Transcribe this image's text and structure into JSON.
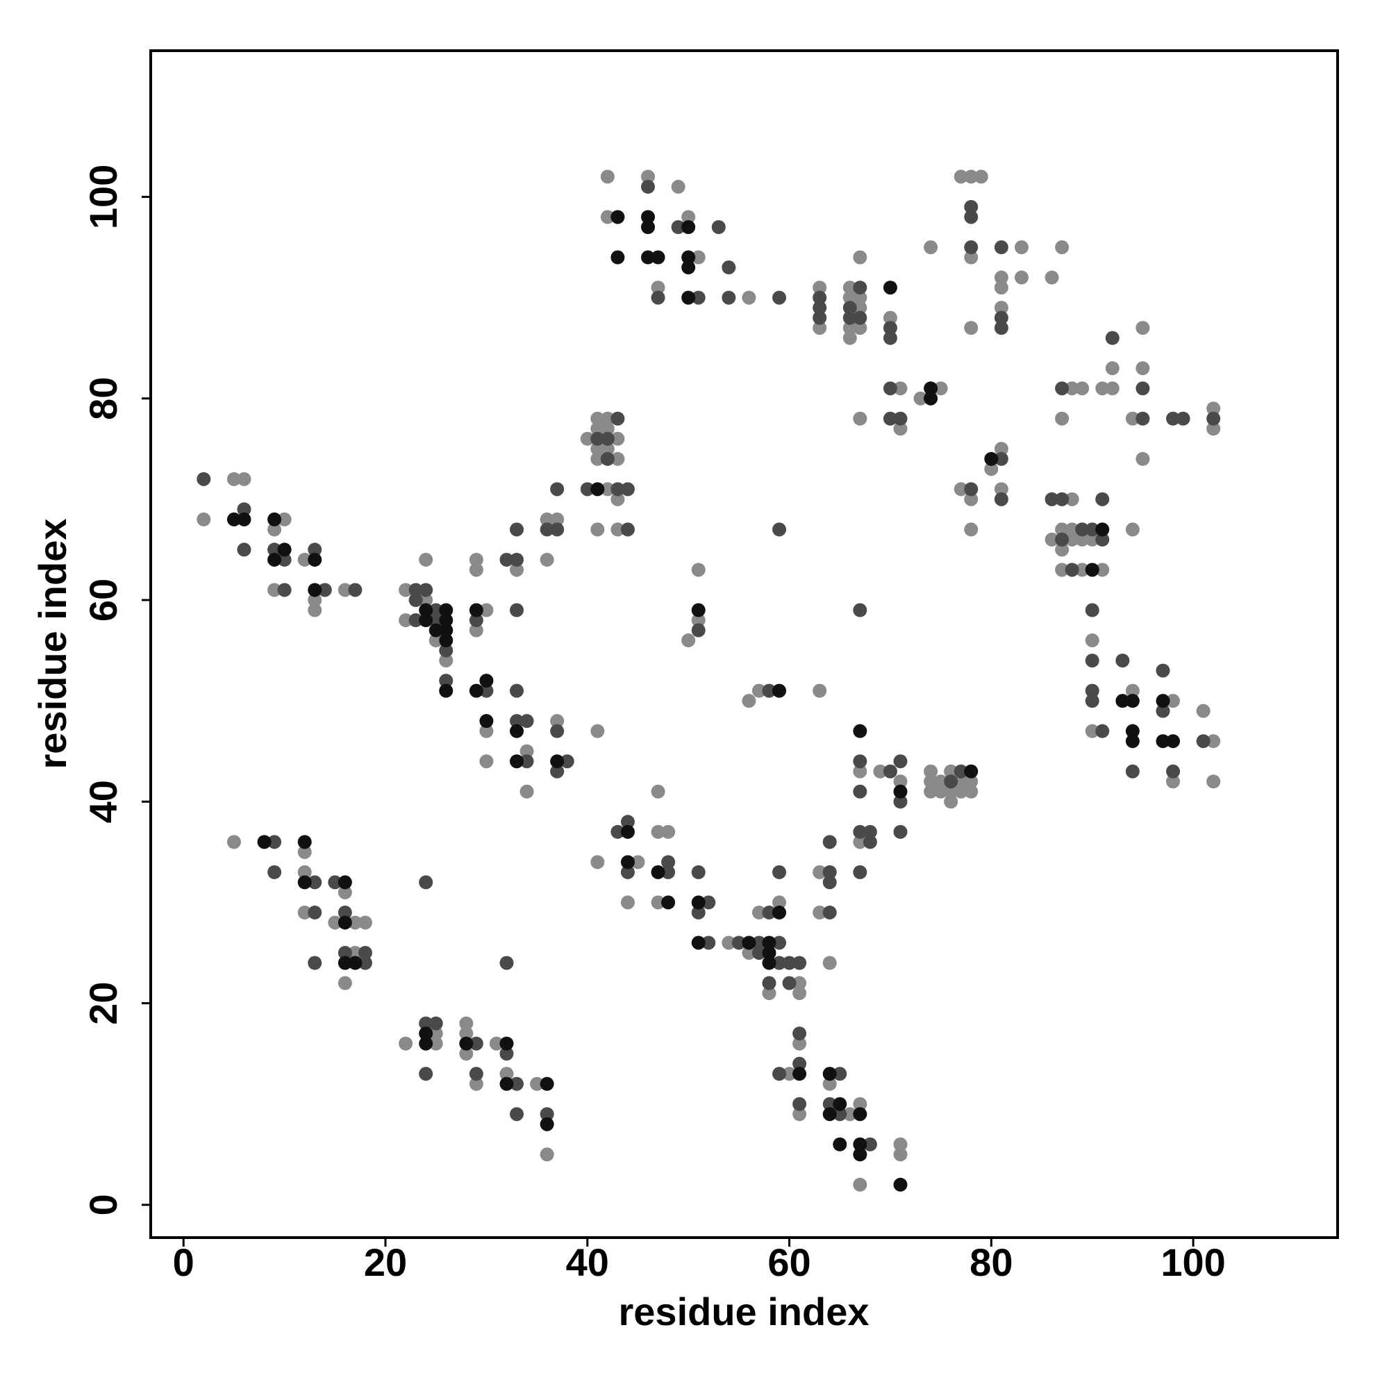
{
  "chart_data": {
    "type": "scatter",
    "xlabel": "residue index",
    "ylabel": "residue index",
    "xlim": [
      -3.25,
      114.3
    ],
    "ylim": [
      -3.25,
      114.5
    ],
    "xticks": [
      0,
      20,
      40,
      60,
      80,
      100
    ],
    "yticks": [
      0,
      20,
      40,
      60,
      80,
      100
    ],
    "series": [
      {
        "color": "#8a8a8a",
        "x": [
          2,
          5,
          6,
          10,
          9,
          9,
          12,
          13,
          13,
          16,
          22,
          22,
          24,
          24,
          25,
          26,
          29,
          29,
          29,
          30,
          30,
          30,
          33,
          34,
          34,
          36,
          36,
          37,
          37,
          42,
          41,
          43,
          40,
          41,
          42,
          43,
          41,
          42,
          41,
          42,
          41,
          43,
          43,
          41,
          42,
          42,
          46,
          47,
          49,
          50,
          51,
          56,
          63,
          63,
          66,
          66,
          66,
          66,
          67,
          67,
          67,
          67,
          70,
          67,
          71,
          71,
          73,
          75,
          74,
          77,
          78,
          79,
          78,
          78,
          83,
          81,
          81,
          83,
          81,
          86,
          87,
          77,
          78,
          78,
          80,
          81,
          81,
          88,
          89,
          87,
          91,
          92,
          92,
          94,
          95,
          95,
          95,
          94,
          102,
          102,
          88,
          86,
          88,
          89,
          90,
          87,
          88,
          87,
          89,
          91,
          87,
          90,
          90,
          94,
          98,
          98,
          101,
          102,
          102,
          51,
          51,
          50,
          56,
          57,
          63,
          67,
          67,
          69,
          71,
          74,
          74,
          74,
          75,
          75,
          76,
          76,
          76,
          77,
          77,
          78,
          78,
          45,
          44,
          47,
          47,
          48,
          47,
          41,
          54,
          56,
          57,
          59,
          58,
          61,
          61,
          63,
          63,
          64,
          61,
          60,
          61,
          64,
          66,
          67,
          67,
          71,
          71,
          5,
          12,
          12,
          12,
          16,
          15,
          17,
          18,
          17,
          16,
          22,
          25,
          25,
          28,
          28,
          28,
          29,
          31,
          32,
          35,
          36
        ],
        "values": [
          68,
          72,
          72,
          68,
          67,
          61,
          64,
          60,
          59,
          61,
          61,
          58,
          64,
          60,
          56,
          54,
          64,
          63,
          57,
          59,
          47,
          44,
          63,
          45,
          41,
          64,
          68,
          68,
          48,
          71,
          67,
          67,
          76,
          78,
          78,
          76,
          77,
          77,
          75,
          75,
          74,
          74,
          70,
          47,
          102,
          98,
          102,
          91,
          101,
          98,
          94,
          90,
          91,
          87,
          91,
          90,
          87,
          86,
          90,
          89,
          87,
          94,
          88,
          78,
          81,
          77,
          80,
          81,
          95,
          102,
          102,
          102,
          94,
          87,
          95,
          92,
          91,
          92,
          89,
          92,
          95,
          71,
          70,
          67,
          73,
          75,
          71,
          81,
          81,
          78,
          81,
          81,
          83,
          78,
          83,
          87,
          74,
          67,
          79,
          77,
          70,
          66,
          66,
          66,
          66,
          67,
          67,
          63,
          63,
          63,
          65,
          56,
          47,
          51,
          50,
          42,
          49,
          46,
          42,
          63,
          58,
          56,
          50,
          51,
          51,
          43,
          36,
          43,
          42,
          43,
          42,
          41,
          42,
          41,
          43,
          41,
          40,
          42,
          41,
          42,
          41,
          34,
          30,
          41,
          37,
          37,
          30,
          34,
          26,
          25,
          29,
          30,
          21,
          22,
          21,
          33,
          29,
          24,
          16,
          13,
          9,
          12,
          9,
          10,
          2,
          6,
          5,
          36,
          35,
          33,
          29,
          31,
          28,
          28,
          28,
          25,
          22,
          16,
          17,
          16,
          18,
          17,
          15,
          12,
          16,
          13,
          12,
          5
        ]
      },
      {
        "color": "#4a4a4a",
        "x": [
          2,
          6,
          6,
          9,
          10,
          10,
          13,
          14,
          17,
          23,
          23,
          23,
          24,
          25,
          25,
          26,
          26,
          29,
          30,
          32,
          33,
          33,
          33,
          33,
          33,
          34,
          34,
          36,
          37,
          37,
          37,
          38,
          37,
          40,
          43,
          44,
          44,
          43,
          41,
          42,
          42,
          46,
          47,
          49,
          51,
          53,
          54,
          54,
          59,
          63,
          63,
          63,
          66,
          66,
          67,
          67,
          70,
          70,
          70,
          70,
          71,
          78,
          78,
          78,
          81,
          81,
          81,
          78,
          81,
          81,
          87,
          92,
          95,
          95,
          98,
          99,
          102,
          86,
          87,
          91,
          87,
          91,
          89,
          90,
          88,
          90,
          90,
          90,
          90,
          91,
          93,
          94,
          97,
          97,
          98,
          101,
          51,
          59,
          67,
          58,
          67,
          67,
          67,
          68,
          68,
          67,
          70,
          71,
          71,
          71,
          76,
          77,
          43,
          44,
          44,
          48,
          48,
          51,
          52,
          51,
          52,
          55,
          57,
          59,
          57,
          59,
          60,
          61,
          58,
          59,
          58,
          60,
          64,
          64,
          64,
          64,
          61,
          61,
          59,
          61,
          65,
          64,
          65,
          68,
          9,
          9,
          13,
          13,
          13,
          15,
          16,
          16,
          18,
          18,
          24,
          24,
          25,
          24,
          29,
          29,
          32,
          33,
          33,
          36,
          32
        ],
        "values": [
          72,
          69,
          65,
          65,
          64,
          61,
          65,
          61,
          61,
          61,
          60,
          58,
          61,
          59,
          58,
          55,
          52,
          58,
          51,
          64,
          64,
          67,
          59,
          51,
          48,
          48,
          44,
          67,
          67,
          71,
          47,
          44,
          43,
          71,
          71,
          71,
          67,
          78,
          76,
          76,
          74,
          101,
          90,
          97,
          90,
          97,
          93,
          90,
          90,
          90,
          89,
          88,
          89,
          88,
          91,
          88,
          87,
          86,
          81,
          78,
          78,
          99,
          98,
          95,
          95,
          88,
          87,
          71,
          74,
          70,
          81,
          86,
          78,
          81,
          78,
          78,
          78,
          70,
          70,
          70,
          66,
          66,
          67,
          67,
          63,
          59,
          54,
          51,
          50,
          47,
          54,
          43,
          53,
          49,
          43,
          46,
          57,
          67,
          59,
          51,
          44,
          41,
          37,
          37,
          36,
          33,
          43,
          44,
          40,
          37,
          42,
          43,
          37,
          38,
          33,
          33,
          34,
          33,
          30,
          29,
          26,
          26,
          26,
          26,
          25,
          24,
          24,
          24,
          29,
          33,
          22,
          22,
          33,
          32,
          36,
          29,
          17,
          14,
          13,
          10,
          13,
          10,
          9,
          6,
          36,
          33,
          32,
          29,
          24,
          32,
          29,
          25,
          25,
          24,
          32,
          18,
          18,
          13,
          16,
          13,
          15,
          12,
          9,
          9,
          24
        ]
      },
      {
        "color": "#111111",
        "x": [
          5,
          6,
          9,
          10,
          9,
          13,
          13,
          24,
          24,
          25,
          26,
          26,
          26,
          26,
          26,
          29,
          29,
          30,
          30,
          33,
          33,
          37,
          41,
          43,
          43,
          46,
          46,
          46,
          47,
          50,
          50,
          50,
          50,
          70,
          74,
          74,
          80,
          91,
          90,
          93,
          94,
          94,
          94,
          97,
          97,
          98,
          51,
          59,
          67,
          71,
          78,
          44,
          44,
          47,
          48,
          51,
          51,
          56,
          58,
          58,
          58,
          59,
          61,
          64,
          65,
          64,
          67,
          65,
          67,
          67,
          71,
          8,
          12,
          12,
          16,
          16,
          16,
          17,
          24,
          24,
          28,
          32,
          32,
          36,
          36
        ],
        "values": [
          68,
          68,
          68,
          65,
          64,
          64,
          61,
          59,
          58,
          57,
          59,
          58,
          57,
          56,
          51,
          59,
          51,
          52,
          48,
          47,
          44,
          44,
          71,
          98,
          94,
          98,
          97,
          94,
          94,
          97,
          94,
          93,
          90,
          91,
          81,
          80,
          74,
          67,
          63,
          50,
          50,
          47,
          46,
          50,
          46,
          46,
          59,
          51,
          47,
          41,
          43,
          37,
          34,
          33,
          30,
          30,
          26,
          26,
          26,
          25,
          24,
          29,
          13,
          13,
          10,
          9,
          9,
          6,
          6,
          5,
          2,
          36,
          36,
          32,
          32,
          28,
          24,
          24,
          17,
          16,
          16,
          16,
          12,
          12,
          8
        ]
      }
    ]
  }
}
